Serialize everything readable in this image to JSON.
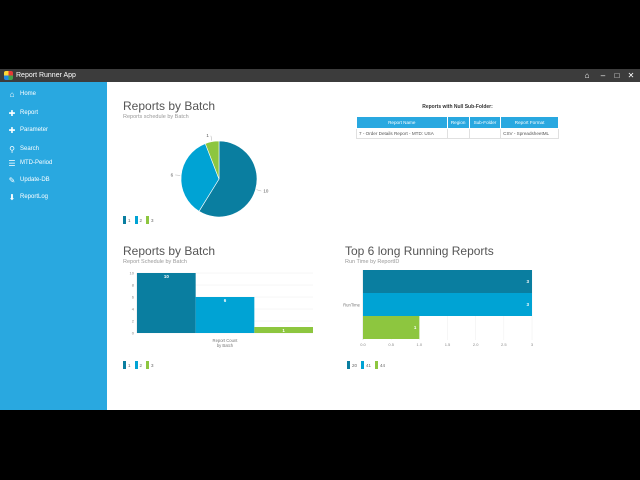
{
  "app": {
    "title": "Report Runner App"
  },
  "titlebar": {
    "home_icon": "home-icon",
    "minimize": "–",
    "maximize": "□",
    "close": "✕"
  },
  "sidebar": {
    "items": [
      {
        "label": "Home",
        "icon": "home-icon",
        "glyph": "⌂"
      },
      {
        "label": "Report",
        "icon": "plus-icon",
        "glyph": "✚"
      },
      {
        "label": "Parameter",
        "icon": "plus-icon",
        "glyph": "✚"
      },
      {
        "label": "Search",
        "icon": "search-icon",
        "glyph": "⚲"
      },
      {
        "label": "MTD-Period",
        "icon": "list-icon",
        "glyph": "☰"
      },
      {
        "label": "Update-DB",
        "icon": "edit-icon",
        "glyph": "✎"
      },
      {
        "label": "ReportLog",
        "icon": "download-icon",
        "glyph": "⬇"
      }
    ]
  },
  "pie_panel": {
    "title": "Reports by Batch",
    "subtitle": "Reports schedule by Batch"
  },
  "table_panel": {
    "title": "Reports with Null Sub-Folder:",
    "columns": [
      "Report Name",
      "Region",
      "Sub-Folder",
      "Report Format"
    ],
    "rows": [
      [
        "7 - Order Details Report - MTD: USA",
        "",
        "",
        "CSV - SpreadsheetML"
      ]
    ]
  },
  "bar_panel": {
    "title": "Reports by Batch",
    "subtitle": "Report Schedule by Batch",
    "xlabel_line1": "Report Count",
    "xlabel_line2": "by Batch"
  },
  "hbar_panel": {
    "title": "Top 6 long Running Reports",
    "subtitle": "Run Time by ReportID",
    "ylabel": "RunTime"
  },
  "colors": {
    "series1": "#0a7ea0",
    "series2": "#00a3d4",
    "series3": "#8dc63f",
    "sidebar": "#29a8e0"
  },
  "chart_data": [
    {
      "type": "pie",
      "categories": [
        "1",
        "2",
        "3"
      ],
      "values": [
        10,
        6,
        1
      ],
      "labels": [
        "10",
        "6",
        "1"
      ],
      "legend": [
        "1",
        "2",
        "3"
      ]
    },
    {
      "type": "bar",
      "categories": [
        "1",
        "2",
        "3"
      ],
      "values": [
        10,
        6,
        1
      ],
      "ylim": [
        0,
        10
      ],
      "yticks": [
        "0",
        "2",
        "4",
        "6",
        "8",
        "10"
      ],
      "legend": [
        "1",
        "2",
        "3"
      ],
      "xlabel": "Report Count by Batch"
    },
    {
      "type": "bar",
      "orientation": "horizontal",
      "series": [
        {
          "name": "20",
          "value": 3
        },
        {
          "name": "41",
          "value": 3
        },
        {
          "name": "44",
          "value": 1
        }
      ],
      "labels": [
        "3",
        "3",
        "1"
      ],
      "xlim": [
        0,
        3
      ],
      "xticks": [
        "0.0",
        "0.5",
        "1.0",
        "1.5",
        "2.0",
        "2.5",
        "3"
      ],
      "ylabel": "RunTime"
    }
  ]
}
